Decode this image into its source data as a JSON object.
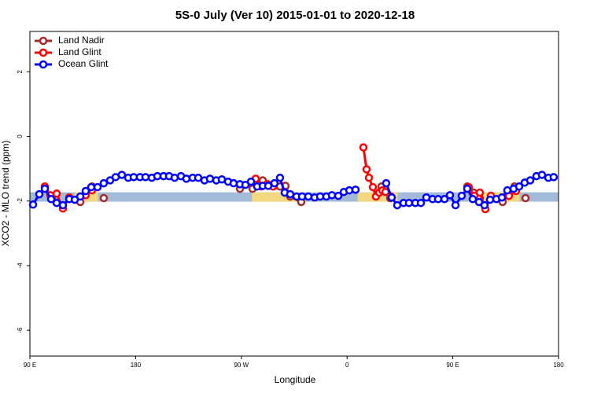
{
  "chart_data": {
    "type": "line",
    "title": "5S-0 July (Ver 10)   2015-01-01 to 2020-12-18",
    "xlabel": "Longitude",
    "ylabel": "XCO2 - MLO trend (ppm)",
    "xlim": [
      90,
      540
    ],
    "ylim": [
      -6.8,
      3.25
    ],
    "xticks": [
      {
        "value": 90,
        "label": "90 E"
      },
      {
        "value": 180,
        "label": "180"
      },
      {
        "value": 270,
        "label": "90 W"
      },
      {
        "value": 360,
        "label": "0"
      },
      {
        "value": 450,
        "label": "90 E"
      },
      {
        "value": 540,
        "label": "180"
      }
    ],
    "yticks": [
      -6,
      -4,
      -2,
      0,
      2
    ],
    "legend": "top-left",
    "band": {
      "ymin": -2.02,
      "ymax": -1.73,
      "color": "#a3bbd9"
    },
    "highlight_ranges": {
      "color": "#f5d77f",
      "ranges": [
        [
          128,
          148
        ],
        [
          279,
          319
        ],
        [
          369,
          403
        ],
        [
          466,
          507
        ]
      ]
    },
    "series": [
      {
        "name": "Land Nadir",
        "color": "#a52a2a",
        "x": [
          102.7,
          108.7,
          null,
          132.9,
          142.9,
          null,
          152.9,
          null,
          268.8,
          null,
          279.5,
          283.5,
          288.2,
          292.9,
          298.2,
          302.9,
          307.6,
          311.6,
          321.0,
          null,
          389.3,
          396.7,
          null,
          462.3,
          467.7,
          473.0,
          null,
          492.4,
          497.8,
          502.5,
          null,
          511.9
        ],
        "values": [
          -1.57,
          -1.91,
          null,
          -2.03,
          -1.55,
          null,
          -1.91,
          null,
          -1.62,
          null,
          -1.62,
          -1.43,
          -1.36,
          -1.5,
          -1.53,
          -1.55,
          -1.53,
          -1.86,
          -2.03,
          null,
          -1.55,
          -1.91,
          null,
          -1.55,
          -1.74,
          -1.91,
          null,
          -2.03,
          -1.82,
          -1.55,
          null,
          -1.91
        ]
      },
      {
        "name": "Land Glint",
        "color": "#ff0000",
        "x": [
          102.7,
          107.4,
          112.8,
          118.1,
          123.5,
          null,
          137.5,
          142.9,
          null,
          282.2,
          286.9,
          292.2,
          296.9,
          null,
          373.9,
          376.6,
          378.6,
          382.0,
          384.6,
          387.3,
          390.0,
          392.7,
          397.3,
          null,
          463.6,
          468.3,
          473.0,
          477.7,
          482.4,
          null,
          497.8,
          503.8
        ],
        "values": [
          -1.55,
          -1.82,
          -1.77,
          -2.23,
          -1.89,
          null,
          -1.82,
          -1.67,
          null,
          -1.31,
          -1.55,
          -1.48,
          -1.55,
          null,
          -0.34,
          -1.02,
          -1.28,
          -1.57,
          -1.86,
          -1.74,
          -1.67,
          -1.72,
          -1.86,
          null,
          -1.57,
          -1.84,
          -1.74,
          -2.25,
          -1.84,
          null,
          -1.84,
          -1.69
        ]
      },
      {
        "name": "Ocean Glint",
        "color": "#0000ff",
        "x": [
          92.7,
          98.0,
          102.7,
          108.1,
          112.8,
          118.1,
          123.5,
          128.2,
          132.9,
          137.5,
          142.2,
          147.6,
          152.9,
          158.3,
          163.0,
          168.3,
          173.7,
          178.4,
          183.7,
          188.4,
          193.8,
          198.5,
          203.8,
          208.5,
          213.2,
          218.6,
          223.2,
          228.6,
          233.3,
          238.6,
          243.3,
          248.7,
          253.4,
          258.7,
          263.4,
          268.8,
          273.5,
          278.2,
          283.5,
          288.2,
          292.9,
          298.2,
          302.9,
          306.9,
          311.6,
          317.0,
          321.7,
          327.0,
          332.4,
          337.1,
          342.4,
          347.1,
          352.5,
          357.2,
          361.9,
          367.2,
          null,
          393.3,
          398.0,
          402.7,
          408.1,
          412.7,
          418.1,
          422.8,
          427.5,
          432.8,
          437.5,
          442.9,
          447.6,
          452.3,
          457.6,
          462.3,
          467.0,
          472.3,
          477.0,
          481.7,
          487.1,
          491.8,
          496.4,
          501.8,
          506.5,
          511.2,
          515.9,
          521.2,
          525.9,
          531.3,
          535.9
        ],
        "values": [
          -2.11,
          -1.79,
          -1.62,
          -1.94,
          -2.06,
          -2.13,
          -1.94,
          -1.96,
          -1.86,
          -1.69,
          -1.57,
          -1.57,
          -1.45,
          -1.36,
          -1.26,
          -1.19,
          -1.28,
          -1.26,
          -1.26,
          -1.26,
          -1.28,
          -1.23,
          -1.23,
          -1.23,
          -1.28,
          -1.23,
          -1.31,
          -1.28,
          -1.28,
          -1.36,
          -1.31,
          -1.36,
          -1.33,
          -1.4,
          -1.45,
          -1.48,
          -1.5,
          -1.4,
          -1.55,
          -1.53,
          -1.53,
          -1.45,
          -1.28,
          -1.74,
          -1.79,
          -1.86,
          -1.86,
          -1.86,
          -1.89,
          -1.86,
          -1.86,
          -1.82,
          -1.84,
          -1.72,
          -1.67,
          -1.65,
          null,
          -1.45,
          -1.89,
          -2.13,
          -2.06,
          -2.06,
          -2.06,
          -2.06,
          -1.89,
          -1.94,
          -1.94,
          -1.94,
          -1.82,
          -2.13,
          -1.84,
          -1.62,
          -1.94,
          -2.03,
          -2.13,
          -1.96,
          -1.94,
          -1.89,
          -1.67,
          -1.62,
          -1.55,
          -1.43,
          -1.36,
          -1.23,
          -1.19,
          -1.28,
          -1.26
        ]
      }
    ]
  }
}
